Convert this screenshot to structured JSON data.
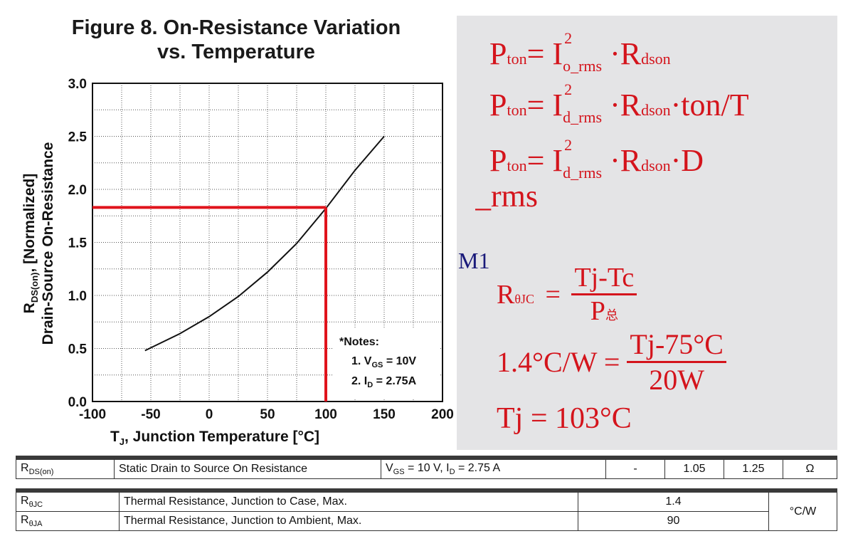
{
  "chart_data": {
    "type": "line",
    "title_lines": [
      "Figure 8. On-Resistance Variation",
      "vs. Temperature"
    ],
    "ylabel_line1": "R_DS(on), [Normalized]",
    "ylabel_line2": "Drain-Source On-Resistance",
    "xlabel": "T_J, Junction Temperature [°C]",
    "xlim": [
      -100,
      200
    ],
    "ylim": [
      0,
      3.0
    ],
    "x_ticks": [
      "-100",
      "-50",
      "0",
      "50",
      "100",
      "150",
      "200"
    ],
    "y_ticks": [
      "0.0",
      "0.5",
      "1.0",
      "1.5",
      "2.0",
      "2.5",
      "3.0"
    ],
    "grid": true,
    "series": [
      {
        "x": [
          -55,
          -25,
          0,
          25,
          50,
          75,
          100,
          125,
          150
        ],
        "y": [
          0.48,
          0.64,
          0.8,
          0.99,
          1.22,
          1.49,
          1.82,
          2.18,
          2.5
        ]
      }
    ],
    "annotation_lines": {
      "x": 100,
      "y": 1.83,
      "color": "#e0141c"
    },
    "notes": {
      "heading": "*Notes:",
      "n1": "1. V_GS = 10V",
      "n2": "2. I_D = 2.75A"
    }
  },
  "formulas": {
    "p1": {
      "lhs": "P",
      "lhs_sub": "ton",
      "eq": "= I",
      "sup": "2",
      "sub": "o_rms",
      "rhs": "·R",
      "rhs_sub": "dson",
      "tail": ""
    },
    "p2": {
      "lhs": "P",
      "lhs_sub": "ton",
      "eq": "= I",
      "sup": "2",
      "sub": "d_rms",
      "rhs": "·R",
      "rhs_sub": "dson",
      "tail": "·ton/T"
    },
    "p3": {
      "lhs": "P",
      "lhs_sub": "ton",
      "eq": "= I",
      "sup": "2",
      "sub": "d_rms",
      "rhs": "·R",
      "rhs_sub": "dson",
      "tail": "·D"
    },
    "partial_rms": "o_rms",
    "partial_m1": "M1",
    "r1": {
      "lhs": "R",
      "lhs_sub": "θJC",
      "eq": "=",
      "num": "Tj-Tc",
      "den": "P",
      "den_sub": "总"
    },
    "r2": {
      "lhs": "1.4°C/W =",
      "num": "Tj-75°C",
      "den": "20W"
    },
    "r3": "Tj = 103°C"
  },
  "table1": {
    "symbol": "R",
    "symbol_sub": "DS(on)",
    "param": "Static Drain to Source On Resistance",
    "cond": "V_GS = 10 V, I_D = 2.75 A",
    "min": "-",
    "typ": "1.05",
    "max": "1.25",
    "unit": "Ω"
  },
  "table2": {
    "rows": [
      {
        "symbol": "R",
        "symbol_sub": "θJC",
        "param": "Thermal Resistance, Junction to Case, Max.",
        "value": "1.4"
      },
      {
        "symbol": "R",
        "symbol_sub": "θJA",
        "param": "Thermal Resistance, Junction to Ambient, Max.",
        "value": "90"
      }
    ],
    "unit": "°C/W"
  }
}
